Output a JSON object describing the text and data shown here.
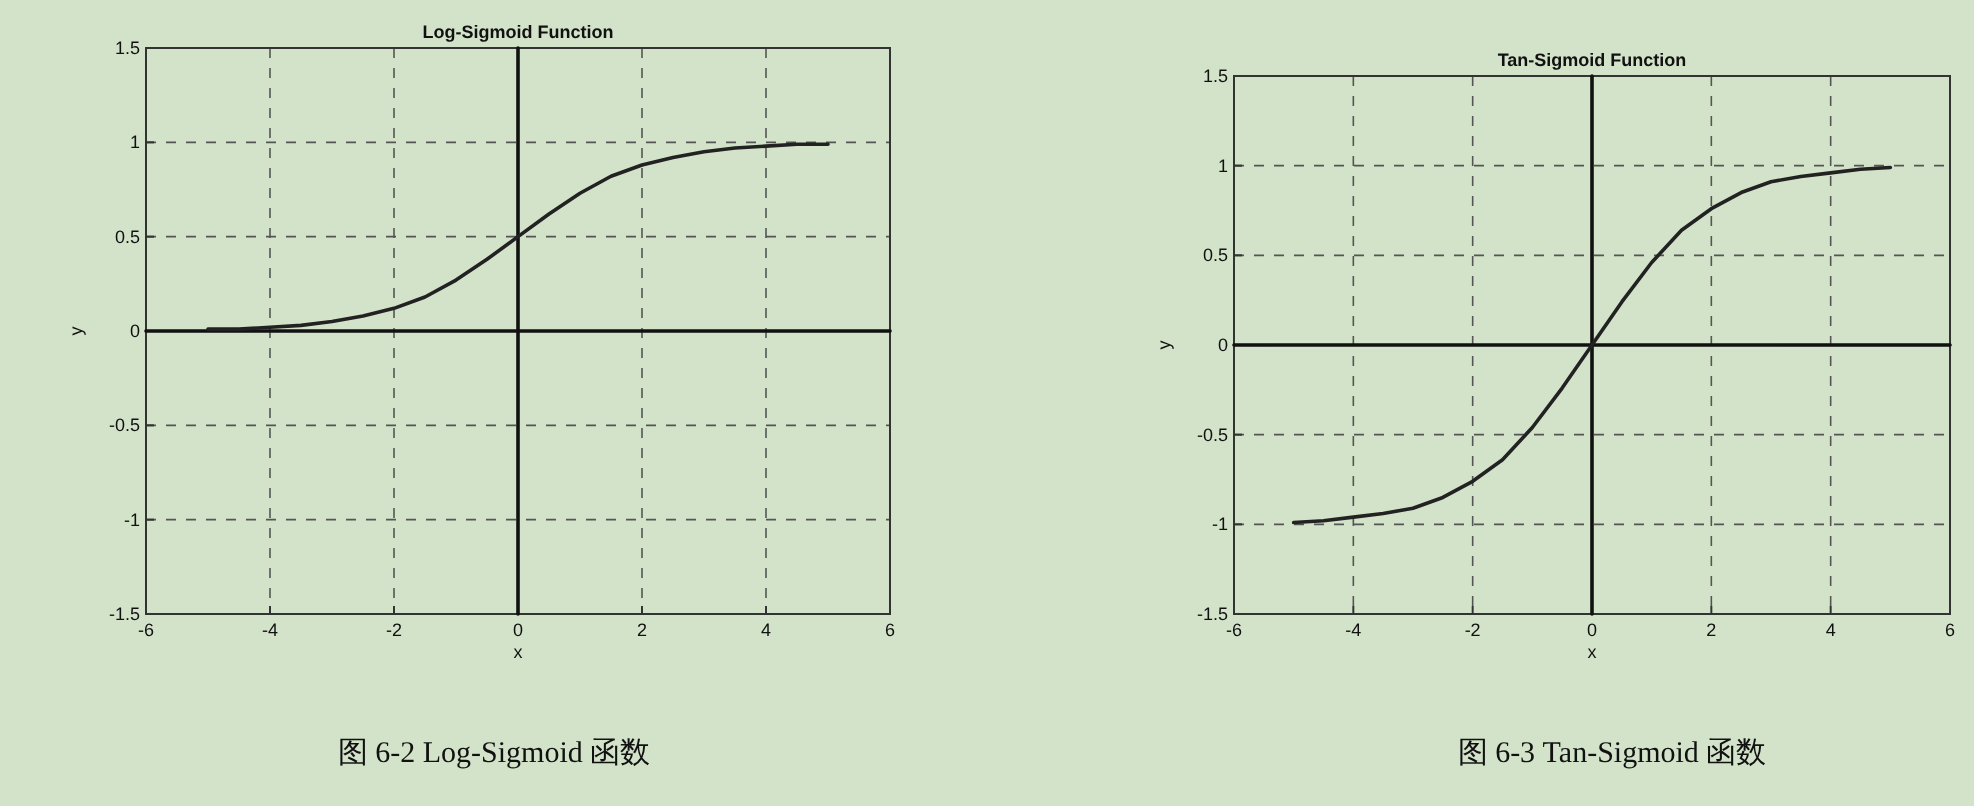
{
  "chart_data": [
    {
      "type": "line",
      "title": "Log-Sigmoid Function",
      "xlabel": "x",
      "ylabel": "y",
      "grid": true,
      "line_style": "solid",
      "marker": "none",
      "xlim": [
        -6,
        6
      ],
      "ylim": [
        -1.5,
        1.5
      ],
      "xticks": [
        -6,
        -4,
        -2,
        0,
        2,
        4,
        6
      ],
      "yticks": [
        -1.5,
        -1,
        -0.5,
        0,
        0.5,
        1,
        1.5
      ],
      "annotations": [
        "图 6-2    Log-Sigmoid 函数"
      ],
      "x": [
        -5,
        -4.5,
        -4,
        -3.5,
        -3,
        -2.5,
        -2,
        -1.5,
        -1,
        -0.5,
        0,
        0.5,
        1,
        1.5,
        2,
        2.5,
        3,
        3.5,
        4,
        4.5,
        5
      ],
      "series": [
        {
          "color": "#111111",
          "x": [
            0,
            0
          ],
          "values": [
            -1.5,
            1.5
          ]
        },
        {
          "color": "#111111",
          "x": [
            -6,
            6
          ],
          "values": [
            0,
            0
          ]
        },
        {
          "color": "#222222",
          "values": [
            0.01,
            0.01,
            0.02,
            0.03,
            0.05,
            0.08,
            0.12,
            0.18,
            0.27,
            0.38,
            0.5,
            0.62,
            0.73,
            0.82,
            0.88,
            0.92,
            0.95,
            0.97,
            0.98,
            0.99,
            0.99
          ]
        }
      ]
    },
    {
      "type": "line",
      "title": "Tan-Sigmoid Function",
      "xlabel": "x",
      "ylabel": "y",
      "grid": true,
      "line_style": "solid",
      "marker": "none",
      "xlim": [
        -6,
        6
      ],
      "ylim": [
        -1.5,
        1.5
      ],
      "xticks": [
        -6,
        -4,
        -2,
        0,
        2,
        4,
        6
      ],
      "yticks": [
        -1.5,
        -1,
        -0.5,
        0,
        0.5,
        1,
        1.5
      ],
      "annotations": [
        "图 6-3    Tan-Sigmoid 函数"
      ],
      "x": [
        -5,
        -4.5,
        -4,
        -3.5,
        -3,
        -2.5,
        -2,
        -1.5,
        -1,
        -0.5,
        0,
        0.5,
        1,
        1.5,
        2,
        2.5,
        3,
        3.5,
        4,
        4.5,
        5
      ],
      "series": [
        {
          "color": "#111111",
          "x": [
            0,
            0
          ],
          "values": [
            -1.5,
            1.5
          ]
        },
        {
          "color": "#111111",
          "x": [
            -6,
            6
          ],
          "values": [
            0,
            0
          ]
        },
        {
          "color": "#222222",
          "values": [
            -0.99,
            -0.98,
            -0.96,
            -0.94,
            -0.91,
            -0.85,
            -0.76,
            -0.64,
            -0.46,
            -0.24,
            0,
            0.24,
            0.46,
            0.64,
            0.76,
            0.85,
            0.91,
            0.94,
            0.96,
            0.98,
            0.99
          ]
        }
      ]
    }
  ]
}
